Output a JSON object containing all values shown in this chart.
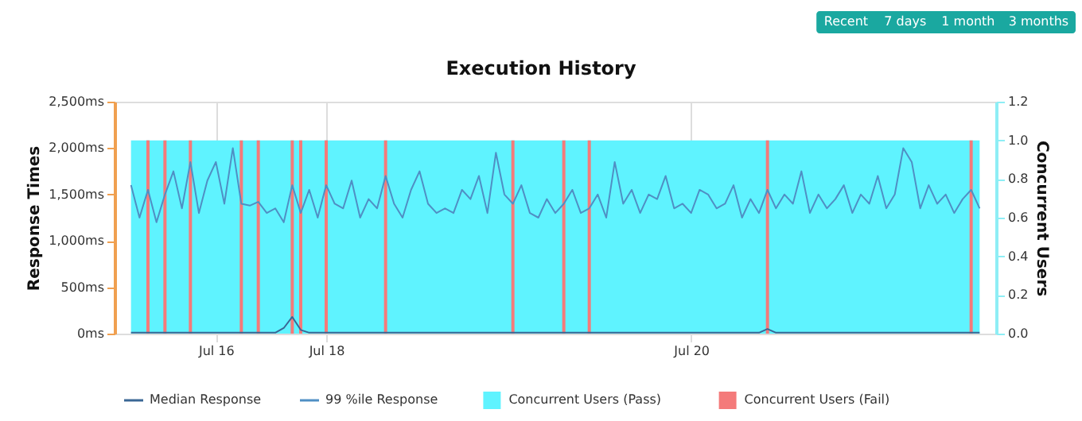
{
  "chart_data": {
    "type": "line",
    "title": "Execution History",
    "ylabel": "Response Times",
    "y2label": "Concurrent Users",
    "annotations": [
      "Recent",
      "7 days",
      "1 month",
      "3 months"
    ],
    "categories": [
      null,
      null,
      null,
      null,
      null,
      null,
      null,
      null,
      null,
      null,
      "Jul 16",
      null,
      null,
      null,
      null,
      null,
      null,
      null,
      null,
      null,
      null,
      null,
      null,
      "Jul 18",
      null,
      null,
      null,
      null,
      null,
      null,
      null,
      null,
      null,
      null,
      null,
      null,
      null,
      null,
      null,
      null,
      null,
      null,
      null,
      null,
      null,
      null,
      null,
      null,
      null,
      null,
      null,
      null,
      null,
      null,
      null,
      null,
      null,
      null,
      null,
      null,
      null,
      null,
      null,
      null,
      null,
      null,
      "Jul 20",
      null,
      null,
      null,
      null,
      null,
      null,
      null,
      null,
      null,
      null,
      null,
      null,
      null,
      null,
      null,
      null,
      null,
      null,
      null,
      null,
      null,
      null,
      null,
      null,
      null,
      null,
      null,
      null,
      null,
      null,
      null,
      null,
      null,
      null
    ],
    "ylim": [
      0,
      2500
    ],
    "yticks": [
      {
        "value": 0,
        "label": "0ms"
      },
      {
        "value": 500,
        "label": "500ms"
      },
      {
        "value": 1000,
        "label": "1,000ms"
      },
      {
        "value": 1500,
        "label": "1,500ms"
      },
      {
        "value": 2000,
        "label": "2,000ms"
      },
      {
        "value": 2500,
        "label": "2,500ms"
      }
    ],
    "y2lim": [
      0,
      1.2
    ],
    "y2ticks": [
      {
        "value": 0,
        "label": "0.0"
      },
      {
        "value": 0.2,
        "label": "0.2"
      },
      {
        "value": 0.4,
        "label": "0.4"
      },
      {
        "value": 0.6,
        "label": "0.6"
      },
      {
        "value": 0.8,
        "label": "0.8"
      },
      {
        "value": 1.0,
        "label": "1.0"
      },
      {
        "value": 1.2,
        "label": "1.2"
      }
    ],
    "grid": "x",
    "legend": "bottom",
    "series": [
      {
        "name": "Median Response",
        "color": "#3a6795",
        "values": [
          10,
          10,
          10,
          10,
          10,
          10,
          10,
          10,
          10,
          10,
          10,
          10,
          10,
          10,
          10,
          10,
          10,
          10,
          60,
          180,
          40,
          10,
          10,
          10,
          10,
          10,
          10,
          10,
          10,
          10,
          10,
          10,
          10,
          10,
          10,
          10,
          10,
          10,
          10,
          10,
          10,
          10,
          10,
          10,
          10,
          10,
          10,
          10,
          10,
          10,
          10,
          10,
          10,
          10,
          10,
          10,
          10,
          10,
          10,
          10,
          10,
          10,
          10,
          10,
          10,
          10,
          10,
          10,
          10,
          10,
          10,
          10,
          10,
          10,
          10,
          50,
          10,
          10,
          10,
          10,
          10,
          10,
          10,
          10,
          10,
          10,
          10,
          10,
          10,
          10,
          10,
          10,
          10,
          10,
          10,
          10,
          10,
          10,
          10,
          10,
          10
        ]
      },
      {
        "name": "99 %ile Response",
        "color": "#4f8fc4",
        "values": [
          1600,
          1250,
          1550,
          1200,
          1500,
          1750,
          1350,
          1850,
          1300,
          1650,
          1850,
          1400,
          2000,
          1400,
          1380,
          1420,
          1300,
          1350,
          1200,
          1600,
          1300,
          1550,
          1250,
          1600,
          1400,
          1350,
          1650,
          1250,
          1450,
          1350,
          1700,
          1400,
          1250,
          1550,
          1750,
          1400,
          1300,
          1350,
          1300,
          1550,
          1450,
          1700,
          1300,
          1950,
          1500,
          1400,
          1600,
          1300,
          1250,
          1450,
          1300,
          1400,
          1550,
          1300,
          1350,
          1500,
          1250,
          1850,
          1400,
          1550,
          1300,
          1500,
          1450,
          1700,
          1350,
          1400,
          1300,
          1550,
          1500,
          1350,
          1400,
          1600,
          1250,
          1450,
          1300,
          1550,
          1350,
          1500,
          1400,
          1750,
          1300,
          1500,
          1350,
          1450,
          1600,
          1300,
          1500,
          1400,
          1700,
          1350,
          1500,
          2000,
          1850,
          1350,
          1600,
          1400,
          1500,
          1300,
          1450,
          1550,
          1350
        ]
      },
      {
        "name": "Concurrent Users (Pass)",
        "type": "area",
        "axis": "y2",
        "color": "#5ff3ff",
        "values": [
          1,
          1,
          1,
          1,
          1,
          1,
          1,
          1,
          1,
          1,
          1,
          1,
          1,
          1,
          1,
          1,
          1,
          1,
          1,
          1,
          1,
          1,
          1,
          1,
          1,
          1,
          1,
          1,
          1,
          1,
          1,
          1,
          1,
          1,
          1,
          1,
          1,
          1,
          1,
          1,
          1,
          1,
          1,
          1,
          1,
          1,
          1,
          1,
          1,
          1,
          1,
          1,
          1,
          1,
          1,
          1,
          1,
          1,
          1,
          1,
          1,
          1,
          1,
          1,
          1,
          1,
          1,
          1,
          1,
          1,
          1,
          1,
          1,
          1,
          1,
          1,
          1,
          1,
          1,
          1,
          1,
          1,
          1,
          1,
          1,
          1,
          1,
          1,
          1,
          1,
          1,
          1,
          1,
          1,
          1,
          1,
          1,
          1,
          1,
          1,
          1
        ]
      },
      {
        "name": "Concurrent Users (Fail)",
        "type": "bar",
        "axis": "y2",
        "color": "#f47a7a",
        "values": [
          null,
          null,
          1,
          null,
          1,
          null,
          null,
          1,
          null,
          null,
          null,
          null,
          null,
          1,
          null,
          1,
          null,
          null,
          null,
          1,
          1,
          null,
          null,
          1,
          null,
          null,
          null,
          null,
          null,
          null,
          1,
          null,
          null,
          null,
          null,
          null,
          null,
          null,
          null,
          null,
          null,
          null,
          null,
          null,
          null,
          1,
          null,
          null,
          null,
          null,
          null,
          1,
          null,
          null,
          1,
          null,
          null,
          null,
          null,
          null,
          null,
          null,
          null,
          null,
          null,
          null,
          null,
          null,
          null,
          null,
          null,
          null,
          null,
          null,
          null,
          1,
          null,
          null,
          null,
          null,
          null,
          null,
          null,
          null,
          null,
          null,
          null,
          null,
          null,
          null,
          null,
          null,
          null,
          null,
          null,
          null,
          null,
          null,
          null,
          1,
          null
        ]
      }
    ]
  }
}
